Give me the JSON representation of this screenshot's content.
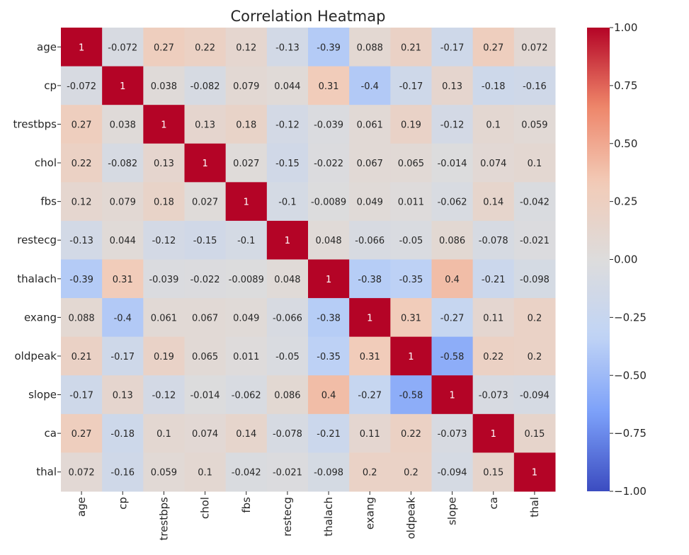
{
  "chart_data": {
    "type": "heatmap",
    "title": "Correlation Heatmap",
    "xlabel": "",
    "ylabel": "",
    "labels": [
      "age",
      "cp",
      "trestbps",
      "chol",
      "fbs",
      "restecg",
      "thalach",
      "exang",
      "oldpeak",
      "slope",
      "ca",
      "thal"
    ],
    "matrix": [
      [
        1,
        -0.072,
        0.27,
        0.22,
        0.12,
        -0.13,
        -0.39,
        0.088,
        0.21,
        -0.17,
        0.27,
        0.072
      ],
      [
        -0.072,
        1,
        0.038,
        -0.082,
        0.079,
        0.044,
        0.31,
        -0.4,
        -0.17,
        0.13,
        -0.18,
        -0.16
      ],
      [
        0.27,
        0.038,
        1,
        0.13,
        0.18,
        -0.12,
        -0.039,
        0.061,
        0.19,
        -0.12,
        0.1,
        0.059
      ],
      [
        0.22,
        -0.082,
        0.13,
        1,
        0.027,
        -0.15,
        -0.022,
        0.067,
        0.065,
        -0.014,
        0.074,
        0.1
      ],
      [
        0.12,
        0.079,
        0.18,
        0.027,
        1,
        -0.1,
        -0.0089,
        0.049,
        0.011,
        -0.062,
        0.14,
        -0.042
      ],
      [
        -0.13,
        0.044,
        -0.12,
        -0.15,
        -0.1,
        1,
        0.048,
        -0.066,
        -0.05,
        0.086,
        -0.078,
        -0.021
      ],
      [
        -0.39,
        0.31,
        -0.039,
        -0.022,
        -0.0089,
        0.048,
        1,
        -0.38,
        -0.35,
        0.4,
        -0.21,
        -0.098
      ],
      [
        0.088,
        -0.4,
        0.061,
        0.067,
        0.049,
        -0.066,
        -0.38,
        1,
        0.31,
        -0.27,
        0.11,
        0.2
      ],
      [
        0.21,
        -0.17,
        0.19,
        0.065,
        0.011,
        -0.05,
        -0.35,
        0.31,
        1,
        -0.58,
        0.22,
        0.2
      ],
      [
        -0.17,
        0.13,
        -0.12,
        -0.014,
        -0.062,
        0.086,
        0.4,
        -0.27,
        -0.58,
        1,
        -0.073,
        -0.094
      ],
      [
        0.27,
        -0.18,
        0.1,
        0.074,
        0.14,
        -0.078,
        -0.21,
        0.11,
        0.22,
        -0.073,
        1,
        0.15
      ],
      [
        0.072,
        -0.16,
        0.059,
        0.1,
        -0.042,
        -0.021,
        -0.098,
        0.2,
        0.2,
        -0.094,
        0.15,
        1
      ]
    ],
    "annotations": [
      [
        "1",
        "-0.072",
        "0.27",
        "0.22",
        "0.12",
        "-0.13",
        "-0.39",
        "0.088",
        "0.21",
        "-0.17",
        "0.27",
        "0.072"
      ],
      [
        "-0.072",
        "1",
        "0.038",
        "-0.082",
        "0.079",
        "0.044",
        "0.31",
        "-0.4",
        "-0.17",
        "0.13",
        "-0.18",
        "-0.16"
      ],
      [
        "0.27",
        "0.038",
        "1",
        "0.13",
        "0.18",
        "-0.12",
        "-0.039",
        "0.061",
        "0.19",
        "-0.12",
        "0.1",
        "0.059"
      ],
      [
        "0.22",
        "-0.082",
        "0.13",
        "1",
        "0.027",
        "-0.15",
        "-0.022",
        "0.067",
        "0.065",
        "-0.014",
        "0.074",
        "0.1"
      ],
      [
        "0.12",
        "0.079",
        "0.18",
        "0.027",
        "1",
        "-0.1",
        "-0.0089",
        "0.049",
        "0.011",
        "-0.062",
        "0.14",
        "-0.042"
      ],
      [
        "-0.13",
        "0.044",
        "-0.12",
        "-0.15",
        "-0.1",
        "1",
        "0.048",
        "-0.066",
        "-0.05",
        "0.086",
        "-0.078",
        "-0.021"
      ],
      [
        "-0.39",
        "0.31",
        "-0.039",
        "-0.022",
        "-0.0089",
        "0.048",
        "1",
        "-0.38",
        "-0.35",
        "0.4",
        "-0.21",
        "-0.098"
      ],
      [
        "0.088",
        "-0.4",
        "0.061",
        "0.067",
        "0.049",
        "-0.066",
        "-0.38",
        "1",
        "0.31",
        "-0.27",
        "0.11",
        "0.2"
      ],
      [
        "0.21",
        "-0.17",
        "0.19",
        "0.065",
        "0.011",
        "-0.05",
        "-0.35",
        "0.31",
        "1",
        "-0.58",
        "0.22",
        "0.2"
      ],
      [
        "-0.17",
        "0.13",
        "-0.12",
        "-0.014",
        "-0.062",
        "0.086",
        "0.4",
        "-0.27",
        "-0.58",
        "1",
        "-0.073",
        "-0.094"
      ],
      [
        "0.27",
        "-0.18",
        "0.1",
        "0.074",
        "0.14",
        "-0.078",
        "-0.21",
        "0.11",
        "0.22",
        "-0.073",
        "1",
        "0.15"
      ],
      [
        "0.072",
        "-0.16",
        "0.059",
        "0.1",
        "-0.042",
        "-0.021",
        "-0.098",
        "0.2",
        "0.2",
        "-0.094",
        "0.15",
        "1"
      ]
    ],
    "colormap": "coolwarm",
    "vmin": -1.0,
    "vmax": 1.0,
    "colorbar_ticks": [
      {
        "value": 1.0,
        "label": "1.00"
      },
      {
        "value": 0.75,
        "label": "0.75"
      },
      {
        "value": 0.5,
        "label": "0.50"
      },
      {
        "value": 0.25,
        "label": "0.25"
      },
      {
        "value": 0.0,
        "label": "0.00"
      },
      {
        "value": -0.25,
        "label": "−0.25"
      },
      {
        "value": -0.5,
        "label": "−0.50"
      },
      {
        "value": -0.75,
        "label": "−0.75"
      },
      {
        "value": -1.0,
        "label": "−1.00"
      }
    ],
    "colormap_stops": [
      "#3b4cc0",
      "#7b9ff9",
      "#c0d4f5",
      "#dddcdc",
      "#f2cbb7",
      "#ee8468",
      "#b40426"
    ]
  }
}
